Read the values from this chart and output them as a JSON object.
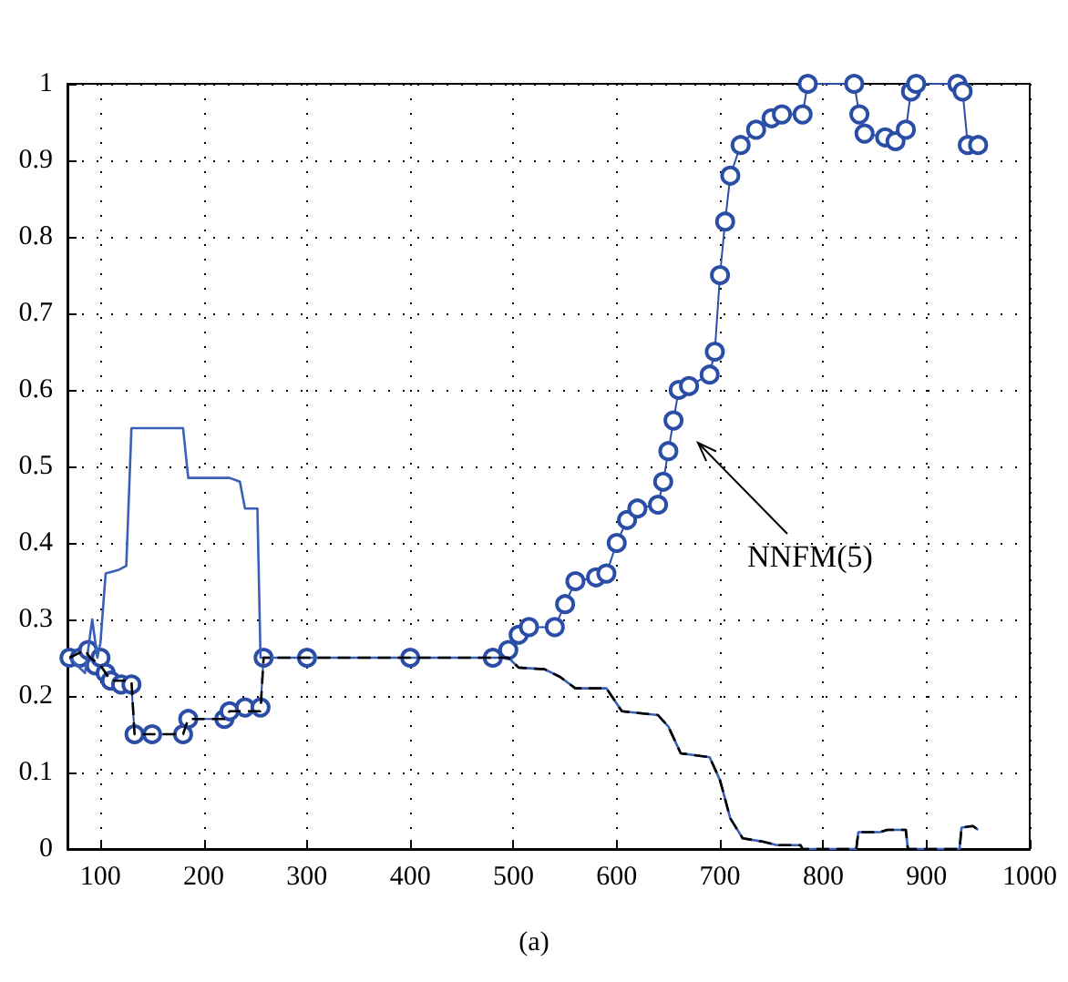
{
  "chart_data": {
    "type": "line",
    "xlim": [
      68,
      1000
    ],
    "ylim": [
      0,
      1
    ],
    "xticks": [
      100,
      200,
      300,
      400,
      500,
      600,
      700,
      800,
      900,
      1000
    ],
    "yticks": [
      0,
      0.1,
      0.2,
      0.3,
      0.4,
      0.5,
      0.6,
      0.7,
      0.8,
      0.9,
      1
    ],
    "grid": true,
    "annotations": [
      "NNFM(5)",
      "(a)"
    ],
    "series": [
      {
        "color": "#3a5fb8",
        "marker": "none",
        "line_style": "solid",
        "x": [
          70,
          85,
          92,
          97,
          100,
          105,
          118,
          125,
          130,
          180,
          185,
          225,
          235,
          240,
          252,
          255,
          495,
          505,
          530,
          545,
          560,
          590,
          605,
          640,
          650,
          662,
          690,
          700,
          710,
          722,
          740,
          755,
          778,
          780,
          832,
          834,
          855,
          862,
          880,
          882,
          932,
          934,
          945,
          950
        ],
        "values": [
          0.25,
          0.23,
          0.3,
          0.25,
          0.27,
          0.36,
          0.365,
          0.37,
          0.55,
          0.55,
          0.485,
          0.485,
          0.48,
          0.445,
          0.445,
          0.25,
          0.25,
          0.237,
          0.235,
          0.225,
          0.21,
          0.21,
          0.18,
          0.175,
          0.16,
          0.125,
          0.12,
          0.09,
          0.04,
          0.014,
          0.01,
          0.005,
          0.005,
          0,
          0,
          0.022,
          0.022,
          0.025,
          0.025,
          0,
          0,
          0.028,
          0.03,
          0.025
        ]
      },
      {
        "color": "#000000",
        "marker": "none",
        "line_style": "dashed",
        "x": [
          70,
          85,
          90,
          100,
          110,
          130,
          133,
          180,
          185,
          220,
          225,
          255,
          258,
          495,
          505,
          530,
          545,
          560,
          590,
          605,
          640,
          650,
          662,
          690,
          700,
          710,
          722,
          740,
          755,
          778,
          780,
          832,
          834,
          855,
          862,
          880,
          882,
          932,
          934,
          945,
          950
        ],
        "values": [
          0.25,
          0.26,
          0.25,
          0.24,
          0.22,
          0.22,
          0.15,
          0.15,
          0.17,
          0.17,
          0.18,
          0.18,
          0.25,
          0.25,
          0.237,
          0.235,
          0.225,
          0.21,
          0.21,
          0.18,
          0.175,
          0.16,
          0.125,
          0.12,
          0.09,
          0.04,
          0.014,
          0.01,
          0.005,
          0.005,
          0,
          0,
          0.022,
          0.022,
          0.025,
          0.025,
          0,
          0,
          0.028,
          0.03,
          0.025
        ]
      },
      {
        "color": "#2a4ea6",
        "marker": "circle",
        "line_style": "solid",
        "x": [
          70,
          80,
          88,
          95,
          100,
          105,
          110,
          120,
          130,
          133,
          150,
          180,
          185,
          220,
          225,
          240,
          255,
          258,
          300,
          400,
          480,
          495,
          505,
          515,
          540,
          550,
          560,
          580,
          590,
          600,
          610,
          620,
          640,
          645,
          650,
          655,
          660,
          670,
          690,
          695,
          700,
          705,
          710,
          720,
          735,
          750,
          760,
          780,
          785,
          830,
          835,
          840,
          860,
          870,
          880,
          885,
          890,
          930,
          935,
          940,
          950
        ],
        "values": [
          0.25,
          0.25,
          0.26,
          0.24,
          0.25,
          0.23,
          0.22,
          0.215,
          0.215,
          0.15,
          0.15,
          0.15,
          0.17,
          0.17,
          0.18,
          0.185,
          0.185,
          0.25,
          0.25,
          0.25,
          0.25,
          0.26,
          0.28,
          0.29,
          0.29,
          0.32,
          0.35,
          0.355,
          0.36,
          0.4,
          0.43,
          0.445,
          0.45,
          0.48,
          0.52,
          0.56,
          0.6,
          0.605,
          0.62,
          0.65,
          0.75,
          0.82,
          0.88,
          0.92,
          0.94,
          0.955,
          0.96,
          0.96,
          1,
          1,
          0.96,
          0.935,
          0.93,
          0.925,
          0.94,
          0.99,
          1,
          1,
          0.99,
          0.92,
          0.92
        ]
      }
    ]
  }
}
